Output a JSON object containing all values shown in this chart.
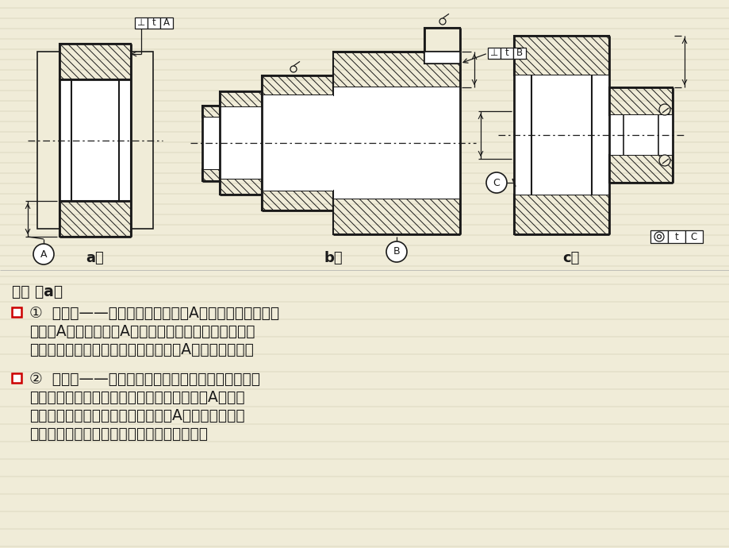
{
  "bg_color": "#f0ecd8",
  "line_color": "#1a1a1a",
  "text_color": "#1a1a1a",
  "red_color": "#cc0000",
  "title_a": "a）",
  "title_b": "b）",
  "title_c": "c）",
  "text_jie": "解： 图a：",
  "b1l1": "①  精基准——齿轮的设计基准是孔A。按基准重合原则，",
  "b1l2": "应选孔A为精基准。以A为精基准也可以方便地加工其他",
  "b1l3": "表面，与统一基准原则相一致。故选孔A为统一精基准。",
  "b2l1": "②  粗基准——齿轮各表面均需加工，不存在保证加工",
  "b2l2": "面与不加工面相互位置关系的问题。在加工孔A时，以",
  "b2l3": "外圆定位较为方便，且可以保证以孔A定位加工外圆时",
  "b2l4": "获得较均匀的余量，故选外圆表面为粗基准。"
}
